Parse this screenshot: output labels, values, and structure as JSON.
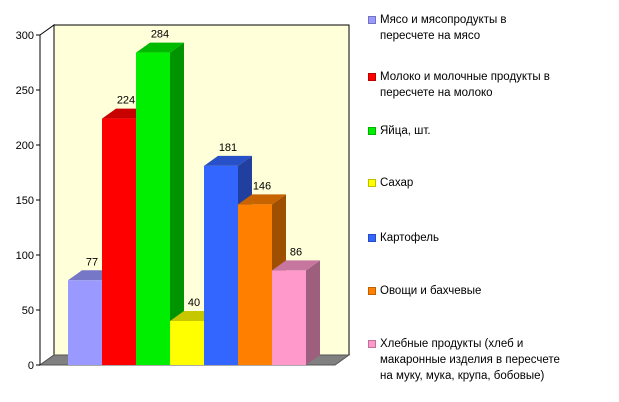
{
  "chart_data": {
    "type": "bar",
    "title": "",
    "xlabel": "",
    "ylabel": "",
    "ylim": [
      0,
      300
    ],
    "yticks": [
      "0",
      "50",
      "100",
      "150",
      "200",
      "250",
      "300"
    ],
    "grid": false,
    "legend_position": "right",
    "background": "#ffffd9",
    "series": [
      {
        "name": "Мясо и мясопродукты в пересчете на мясо",
        "value": 77,
        "label": "77",
        "color": "#9999ff"
      },
      {
        "name": "Молоко и молочные продукты в пересчете на молоко",
        "value": 224,
        "label": "224",
        "color": "#ff0000"
      },
      {
        "name": "Яйца, шт.",
        "value": 284,
        "label": "284",
        "color": "#00ee00"
      },
      {
        "name": "Сахар",
        "value": 40,
        "label": "40",
        "color": "#ffff00"
      },
      {
        "name": "Картофель",
        "value": 181,
        "label": "181",
        "color": "#3366ff"
      },
      {
        "name": "Овощи и бахчевые",
        "value": 146,
        "label": "146",
        "color": "#ff8000"
      },
      {
        "name": "Хлебные продукты (хлеб и макаронные изделия в пересчете на муку, мука, крупа, бобовые)",
        "value": 86,
        "label": "86",
        "color": "#ff99cc"
      }
    ]
  }
}
